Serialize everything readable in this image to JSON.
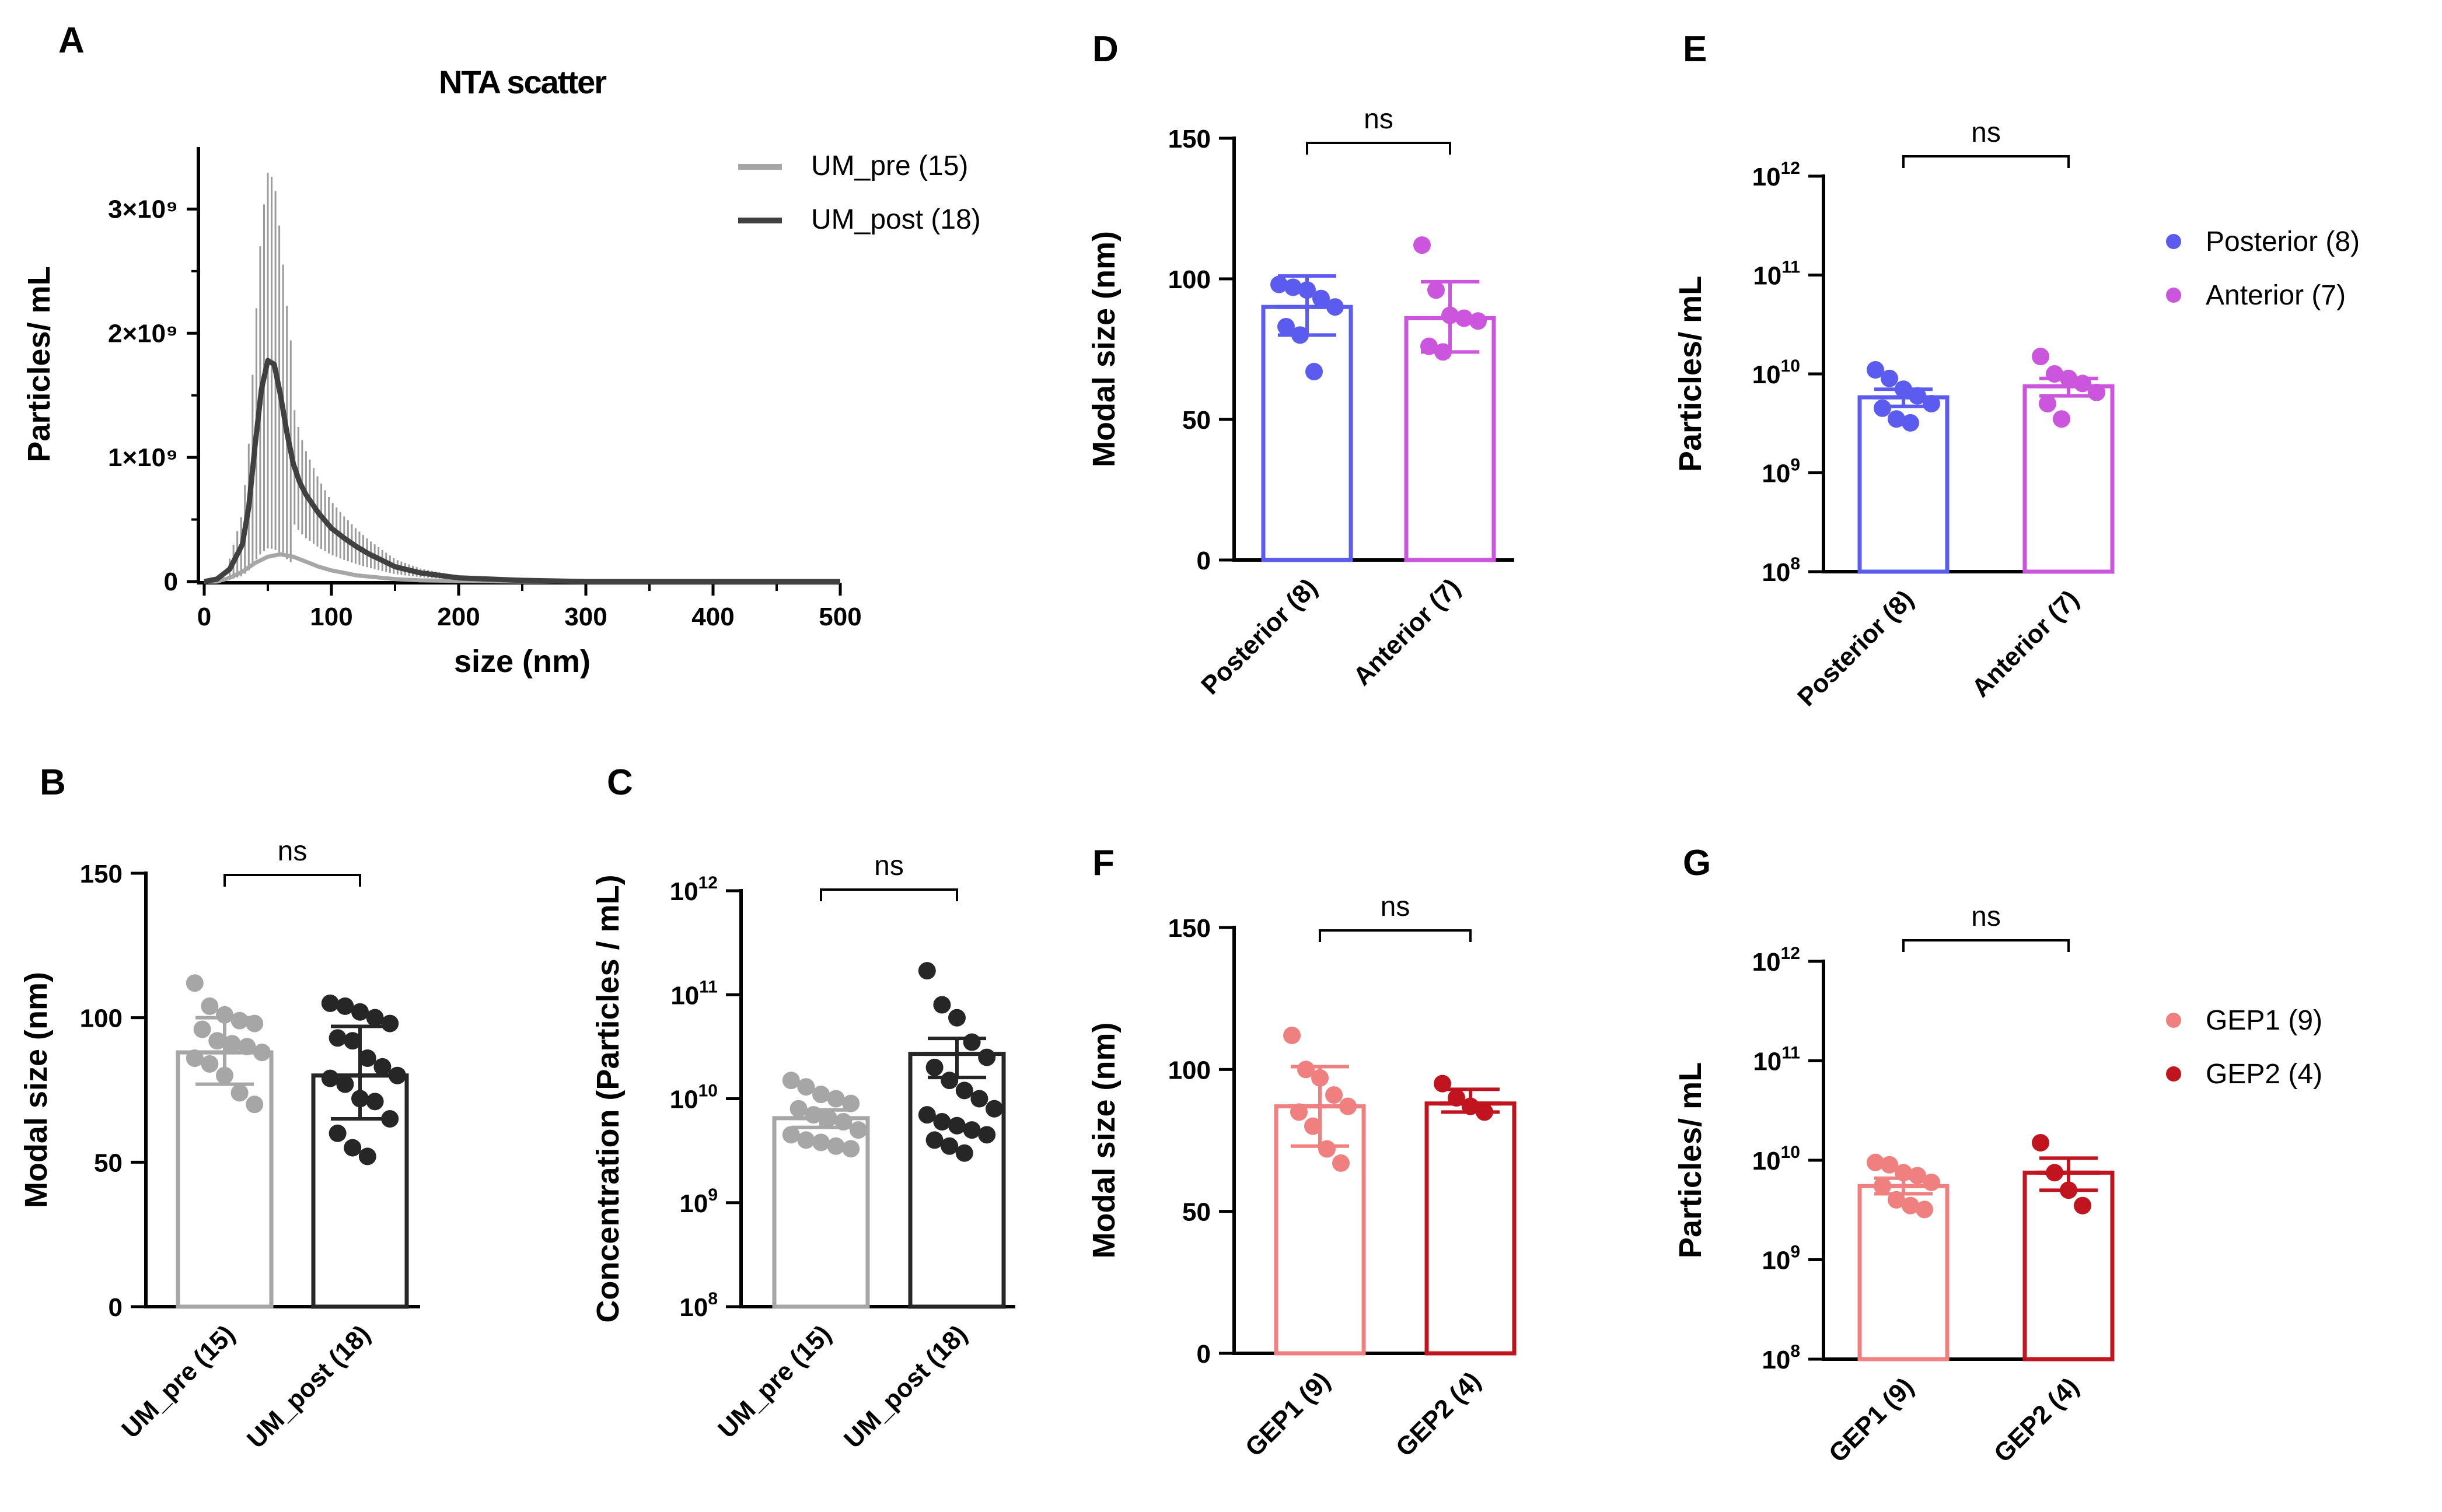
{
  "panels": {
    "A": "A",
    "B": "B",
    "C": "C",
    "D": "D",
    "E": "E",
    "F": "F",
    "G": "G"
  },
  "chart_data": [
    {
      "id": "A",
      "type": "line",
      "title": "NTA scatter",
      "xlabel": "size (nm)",
      "ylabel": "Particles/ mL",
      "xlim": [
        0,
        500
      ],
      "ylim": [
        0,
        3500000000.0
      ],
      "x_ticks": [
        "0",
        "100",
        "200",
        "300",
        "400",
        "500"
      ],
      "y_ticks": [
        "0",
        "1×10⁹",
        "2×10⁹",
        "3×10⁹"
      ],
      "legend_position": "top-right",
      "series": [
        {
          "name": "UM_pre (15)",
          "color": "#a6a6a6",
          "x": [
            0,
            10,
            20,
            30,
            40,
            50,
            60,
            70,
            80,
            90,
            100,
            110,
            120,
            130,
            140,
            150,
            170,
            200,
            250,
            300,
            400,
            500
          ],
          "y": [
            0,
            0,
            30000000.0,
            80000000.0,
            150000000.0,
            200000000.0,
            220000000.0,
            200000000.0,
            160000000.0,
            120000000.0,
            90000000.0,
            70000000.0,
            50000000.0,
            40000000.0,
            30000000.0,
            20000000.0,
            10000000.0,
            5000000.0,
            0,
            0,
            0,
            0
          ]
        },
        {
          "name": "UM_post (18)",
          "color": "#404040",
          "x": [
            0,
            10,
            20,
            30,
            35,
            40,
            45,
            50,
            55,
            60,
            65,
            70,
            75,
            80,
            90,
            100,
            110,
            120,
            130,
            140,
            150,
            170,
            200,
            250,
            300,
            400,
            500
          ],
          "y": [
            0,
            20000000.0,
            100000000.0,
            300000000.0,
            600000000.0,
            1100000000.0,
            1550000000.0,
            1780000000.0,
            1750000000.0,
            1500000000.0,
            1200000000.0,
            950000000.0,
            800000000.0,
            700000000.0,
            550000000.0,
            430000000.0,
            350000000.0,
            280000000.0,
            220000000.0,
            170000000.0,
            120000000.0,
            70000000.0,
            30000000.0,
            10000000.0,
            0,
            0,
            0
          ]
        }
      ]
    },
    {
      "id": "B",
      "type": "bar",
      "ylabel": "Modal size (nm)",
      "scale": "linear",
      "ylim": [
        0,
        150
      ],
      "y_ticks": [
        "0",
        "50",
        "100",
        "150"
      ],
      "significance": "ns",
      "categories": [
        "UM_pre (15)",
        "UM_post (18)"
      ],
      "series": [
        {
          "name": "UM_pre (15)",
          "color": "#a6a6a6",
          "mean": 88,
          "err_low": 77,
          "err_high": 100,
          "points": [
            112,
            104,
            101,
            99,
            98,
            96,
            92,
            91,
            90,
            88,
            86,
            84,
            80,
            74,
            70
          ]
        },
        {
          "name": "UM_post (18)",
          "color": "#262626",
          "mean": 80,
          "err_low": 65,
          "err_high": 97,
          "points": [
            105,
            104,
            102,
            100,
            98,
            93,
            92,
            86,
            83,
            80,
            79,
            77,
            72,
            71,
            65,
            60,
            55,
            52
          ]
        }
      ]
    },
    {
      "id": "C",
      "type": "bar",
      "ylabel": "Concentration (Particles / mL)",
      "scale": "log",
      "ylim": [
        100000000.0,
        1000000000000.0
      ],
      "y_ticks": [
        "10^8",
        "10^9",
        "10^10",
        "10^11",
        "10^12"
      ],
      "significance": "ns",
      "categories": [
        "UM_pre (15)",
        "UM_post (18)"
      ],
      "series": [
        {
          "name": "UM_pre (15)",
          "color": "#a6a6a6",
          "mean": 6500000000.0,
          "err_low": 5300000000.0,
          "err_high": 7800000000.0,
          "points": [
            15000000000.0,
            13000000000.0,
            11000000000.0,
            10000000000.0,
            9000000000.0,
            8000000000.0,
            7000000000.0,
            6500000000.0,
            6000000000.0,
            5000000000.0,
            4500000000.0,
            4000000000.0,
            3800000000.0,
            3500000000.0,
            3300000000.0
          ]
        },
        {
          "name": "UM_post (18)",
          "color": "#262626",
          "mean": 27000000000.0,
          "err_low": 16000000000.0,
          "err_high": 38000000000.0,
          "points": [
            170000000000.0,
            80000000000.0,
            60000000000.0,
            35000000000.0,
            25000000000.0,
            20000000000.0,
            15000000000.0,
            12000000000.0,
            10000000000.0,
            8000000000.0,
            7000000000.0,
            6000000000.0,
            5500000000.0,
            5000000000.0,
            4500000000.0,
            4000000000.0,
            3500000000.0,
            3000000000.0
          ]
        }
      ]
    },
    {
      "id": "D",
      "type": "bar",
      "ylabel": "Modal size (nm)",
      "scale": "linear",
      "ylim": [
        0,
        150
      ],
      "y_ticks": [
        "0",
        "50",
        "100",
        "150"
      ],
      "significance": "ns",
      "categories": [
        "Posterior (8)",
        "Anterior (7)"
      ],
      "series": [
        {
          "name": "Posterior (8)",
          "color": "#5b5bf0",
          "mean": 90,
          "err_low": 80,
          "err_high": 101,
          "points": [
            98,
            97,
            96,
            93,
            90,
            83,
            80,
            67
          ]
        },
        {
          "name": "Anterior (7)",
          "color": "#cc55dd",
          "mean": 86,
          "err_low": 74,
          "err_high": 99,
          "points": [
            112,
            96,
            87,
            86,
            85,
            76,
            74
          ]
        }
      ]
    },
    {
      "id": "E",
      "type": "bar",
      "ylabel": "Particles/ mL",
      "scale": "log",
      "ylim": [
        100000000.0,
        1000000000000.0
      ],
      "y_ticks": [
        "10^8",
        "10^9",
        "10^10",
        "10^11",
        "10^12"
      ],
      "significance": "ns",
      "categories": [
        "Posterior (8)",
        "Anterior (7)"
      ],
      "legend_position": "right",
      "series": [
        {
          "name": "Posterior (8)",
          "color": "#5b5bf0",
          "mean": 5800000000.0,
          "err_low": 4700000000.0,
          "err_high": 7000000000.0,
          "points": [
            11000000000.0,
            9000000000.0,
            7000000000.0,
            6000000000.0,
            5000000000.0,
            4500000000.0,
            3500000000.0,
            3200000000.0
          ]
        },
        {
          "name": "Anterior (7)",
          "color": "#cc55dd",
          "mean": 7500000000.0,
          "err_low": 6000000000.0,
          "err_high": 9000000000.0,
          "points": [
            15000000000.0,
            10000000000.0,
            9000000000.0,
            8000000000.0,
            6500000000.0,
            5000000000.0,
            3500000000.0
          ]
        }
      ]
    },
    {
      "id": "F",
      "type": "bar",
      "ylabel": "Modal size (nm)",
      "scale": "linear",
      "ylim": [
        0,
        150
      ],
      "y_ticks": [
        "0",
        "50",
        "100",
        "150"
      ],
      "significance": "ns",
      "categories": [
        "GEP1 (9)",
        "GEP2 (4)"
      ],
      "series": [
        {
          "name": "GEP1 (9)",
          "color": "#f08080",
          "mean": 87,
          "err_low": 73,
          "err_high": 101,
          "points": [
            112,
            100,
            97,
            91,
            87,
            85,
            80,
            72,
            67
          ]
        },
        {
          "name": "GEP2 (4)",
          "color": "#c0141e",
          "mean": 88,
          "err_low": 85,
          "err_high": 93,
          "points": [
            95,
            90,
            87,
            85
          ]
        }
      ]
    },
    {
      "id": "G",
      "type": "bar",
      "ylabel": "Particles/ mL",
      "scale": "log",
      "ylim": [
        100000000.0,
        1000000000000.0
      ],
      "y_ticks": [
        "10^8",
        "10^9",
        "10^10",
        "10^11",
        "10^12"
      ],
      "significance": "ns",
      "categories": [
        "GEP1 (9)",
        "GEP2 (4)"
      ],
      "legend_position": "right",
      "series": [
        {
          "name": "GEP1 (9)",
          "color": "#f08080",
          "mean": 5500000000.0,
          "err_low": 4600000000.0,
          "err_high": 6600000000.0,
          "points": [
            9500000000.0,
            9000000000.0,
            7500000000.0,
            7000000000.0,
            6000000000.0,
            5500000000.0,
            4000000000.0,
            3500000000.0,
            3200000000.0
          ]
        },
        {
          "name": "GEP2 (4)",
          "color": "#c0141e",
          "mean": 7500000000.0,
          "err_low": 5000000000.0,
          "err_high": 10500000000.0,
          "points": [
            15000000000.0,
            7500000000.0,
            5000000000.0,
            3500000000.0
          ]
        }
      ]
    }
  ]
}
